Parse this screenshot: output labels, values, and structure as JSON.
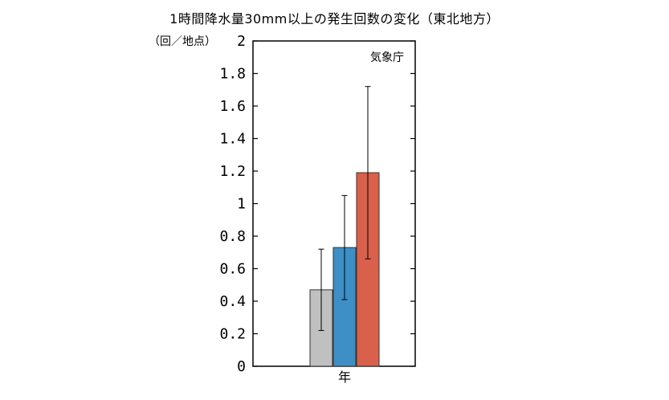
{
  "chart_data": {
    "type": "bar",
    "title": "1時間降水量30mm以上の発生回数の変化（東北地方）",
    "unit_label": "（回／地点）",
    "source": "気象庁",
    "xlabel": "年",
    "ylim": [
      0,
      2
    ],
    "yticks": [
      "0",
      "0.2",
      "0.4",
      "0.6",
      "0.8",
      "1",
      "1.2",
      "1.4",
      "1.6",
      "1.8",
      "2"
    ],
    "bars": [
      {
        "value": 0.47,
        "err_low": 0.22,
        "err_high": 0.72,
        "color": "#c0c0c0"
      },
      {
        "value": 0.73,
        "err_low": 0.41,
        "err_high": 1.05,
        "color": "#3d8fc6"
      },
      {
        "value": 1.19,
        "err_low": 0.66,
        "err_high": 1.72,
        "color": "#d9604a"
      }
    ],
    "grid": false
  }
}
